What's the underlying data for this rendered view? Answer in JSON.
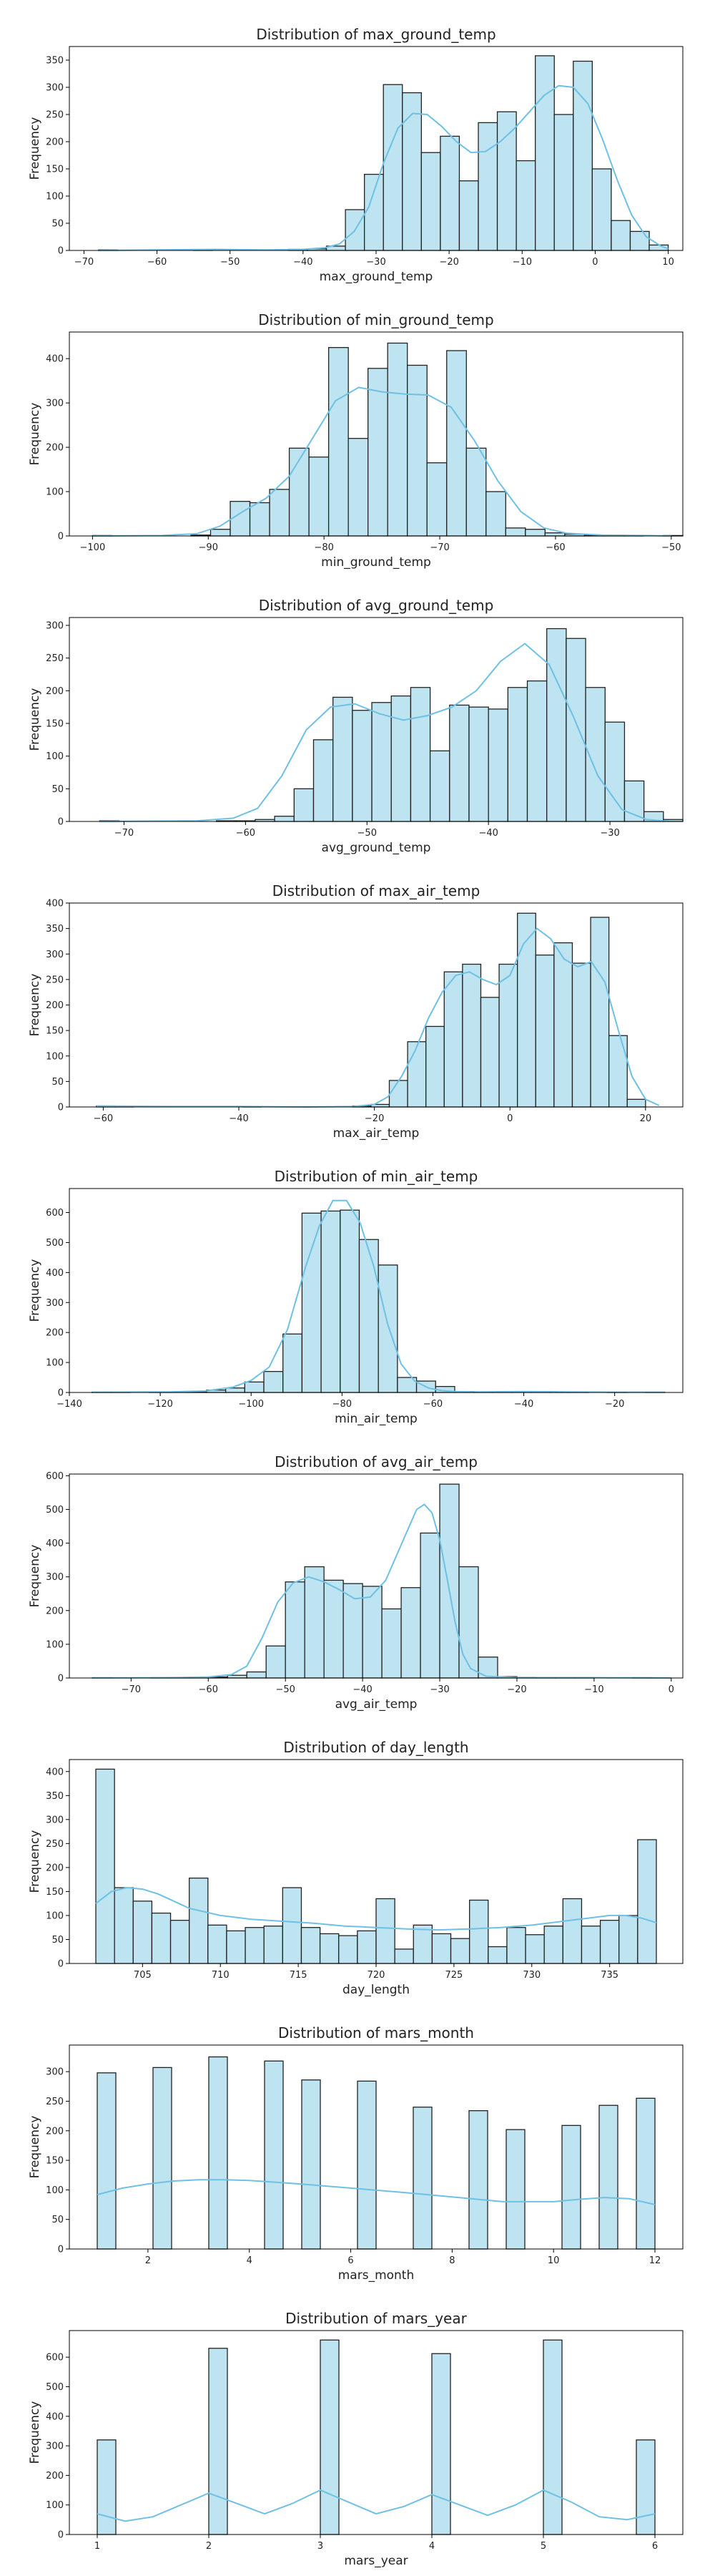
{
  "chart_data": [
    {
      "type": "bar",
      "title": "Distribution of max_ground_temp",
      "xlabel": "max_ground_temp",
      "ylabel": "Frequency",
      "xlim": [
        -72,
        12
      ],
      "ylim": [
        0,
        375
      ],
      "xticks": [
        -70,
        -60,
        -50,
        -40,
        -30,
        -20,
        -10,
        0,
        10
      ],
      "yticks": [
        0,
        50,
        100,
        150,
        200,
        250,
        300,
        350
      ],
      "bin_edges": [
        -68,
        -65.4,
        -62.8,
        -60.2,
        -57.6,
        -55,
        -52.4,
        -49.8,
        -47.2,
        -44.6,
        -42,
        -39.4,
        -36.8,
        -34.2,
        -31.6,
        -29,
        -26.4,
        -23.8,
        -21.2,
        -18.6,
        -16,
        -13.4,
        -10.8,
        -8.2,
        -5.6,
        -3,
        -0.4,
        2.2,
        4.8,
        7.4,
        10
      ],
      "values": [
        1,
        0,
        0,
        0,
        0,
        1,
        0,
        0,
        0,
        0,
        2,
        3,
        8,
        75,
        140,
        305,
        290,
        180,
        210,
        128,
        235,
        255,
        165,
        358,
        250,
        348,
        150,
        55,
        35,
        10
      ],
      "kde": {
        "x": [
          -68,
          -60,
          -52,
          -45,
          -40,
          -37,
          -35,
          -33,
          -31,
          -29,
          -27,
          -25,
          -23,
          -21,
          -19,
          -17,
          -15,
          -13,
          -11,
          -9,
          -7,
          -5,
          -3,
          -1,
          1,
          3,
          5,
          7,
          9,
          10
        ],
        "y": [
          0,
          1,
          2,
          1,
          2,
          5,
          12,
          35,
          80,
          160,
          225,
          252,
          250,
          228,
          200,
          180,
          182,
          200,
          225,
          255,
          285,
          303,
          300,
          270,
          205,
          130,
          65,
          25,
          8,
          3
        ]
      }
    },
    {
      "type": "bar",
      "title": "Distribution of min_ground_temp",
      "xlabel": "min_ground_temp",
      "ylabel": "Frequency",
      "xlim": [
        -102,
        -49
      ],
      "ylim": [
        0,
        460
      ],
      "xticks": [
        -100,
        -90,
        -80,
        -70,
        -60,
        -50
      ],
      "yticks": [
        0,
        100,
        200,
        300,
        400
      ],
      "bin_edges": [
        -100,
        -98.3,
        -96.6,
        -94.9,
        -93.2,
        -91.5,
        -89.8,
        -88.1,
        -86.4,
        -84.7,
        -83,
        -81.3,
        -79.6,
        -77.9,
        -76.2,
        -74.5,
        -72.8,
        -71.1,
        -69.4,
        -67.7,
        -66,
        -64.3,
        -62.6,
        -60.9,
        -59.2,
        -57.5,
        -55.8,
        -54.1,
        -52.4,
        -50.7,
        -49
      ],
      "values": [
        1,
        0,
        0,
        0,
        0,
        2,
        15,
        78,
        75,
        105,
        198,
        178,
        425,
        220,
        378,
        435,
        385,
        165,
        418,
        198,
        100,
        18,
        15,
        7,
        4,
        2,
        1,
        1,
        0,
        1
      ],
      "kde": {
        "x": [
          -100,
          -94,
          -91,
          -89,
          -87,
          -85,
          -83,
          -81,
          -79,
          -77,
          -75,
          -73,
          -71,
          -69,
          -67,
          -65,
          -63,
          -61,
          -59,
          -56,
          -52,
          -50
        ],
        "y": [
          0,
          1,
          5,
          22,
          55,
          85,
          135,
          220,
          305,
          335,
          325,
          320,
          318,
          290,
          215,
          125,
          55,
          18,
          6,
          2,
          1,
          0
        ]
      }
    },
    {
      "type": "bar",
      "title": "Distribution of avg_ground_temp",
      "xlabel": "avg_ground_temp",
      "ylabel": "Frequency",
      "xlim": [
        -74.5,
        -24
      ],
      "ylim": [
        0,
        312
      ],
      "xticks": [
        -70,
        -60,
        -50,
        -40,
        -30
      ],
      "yticks": [
        0,
        50,
        100,
        150,
        200,
        250,
        300
      ],
      "bin_edges": [
        -72,
        -70.4,
        -68.8,
        -67.2,
        -65.6,
        -64,
        -62.4,
        -60.8,
        -59.2,
        -57.6,
        -56,
        -54.4,
        -52.8,
        -51.2,
        -49.6,
        -48,
        -46.4,
        -44.8,
        -43.2,
        -41.6,
        -40,
        -38.4,
        -36.8,
        -35.2,
        -33.6,
        -32,
        -30.4,
        -28.8,
        -27.2,
        -25.6,
        -24
      ],
      "values": [
        1,
        0,
        0,
        0,
        0,
        0,
        1,
        1,
        3,
        8,
        50,
        125,
        190,
        170,
        182,
        192,
        205,
        108,
        178,
        175,
        172,
        205,
        215,
        295,
        280,
        205,
        152,
        62,
        15,
        3
      ],
      "kde": {
        "x": [
          -72,
          -64,
          -61,
          -59,
          -57,
          -55,
          -53,
          -51,
          -49,
          -47,
          -45,
          -43,
          -41,
          -39,
          -37,
          -35,
          -33,
          -31,
          -29,
          -27,
          -25
        ],
        "y": [
          0,
          1,
          5,
          20,
          70,
          140,
          175,
          180,
          165,
          155,
          162,
          175,
          200,
          245,
          272,
          240,
          160,
          70,
          18,
          3,
          0
        ]
      }
    },
    {
      "type": "bar",
      "title": "Distribution of max_air_temp",
      "xlabel": "max_air_temp",
      "ylabel": "Frequency",
      "xlim": [
        -65,
        25.5
      ],
      "ylim": [
        0,
        400
      ],
      "xticks": [
        -60,
        -40,
        -20,
        0,
        20
      ],
      "yticks": [
        0,
        50,
        100,
        150,
        200,
        250,
        300,
        350,
        400
      ],
      "bin_edges": [
        -61,
        -58.3,
        -55.6,
        -52.9,
        -50.2,
        -47.5,
        -44.8,
        -42.1,
        -39.4,
        -36.7,
        -34,
        -31.3,
        -28.6,
        -25.9,
        -23.2,
        -20.5,
        -17.8,
        -15.1,
        -12.4,
        -9.7,
        -7,
        -4.3,
        -1.6,
        1.1,
        3.8,
        6.5,
        9.2,
        11.9,
        14.6,
        17.3,
        20
      ],
      "values": [
        2,
        1,
        0,
        0,
        0,
        0,
        0,
        0,
        1,
        0,
        0,
        0,
        0,
        0,
        2,
        5,
        52,
        128,
        158,
        265,
        280,
        215,
        280,
        380,
        298,
        322,
        282,
        372,
        140,
        15
      ],
      "kde": {
        "x": [
          -61,
          -50,
          -40,
          -30,
          -23,
          -20,
          -18,
          -16,
          -14,
          -12,
          -10,
          -8,
          -6,
          -4,
          -2,
          0,
          2,
          4,
          6,
          8,
          10,
          12,
          14,
          16,
          18,
          20,
          22
        ],
        "y": [
          2,
          1,
          1,
          0,
          1,
          5,
          20,
          60,
          110,
          175,
          225,
          258,
          265,
          250,
          240,
          258,
          320,
          350,
          330,
          290,
          275,
          285,
          245,
          150,
          60,
          15,
          3
        ]
      }
    },
    {
      "type": "bar",
      "title": "Distribution of min_air_temp",
      "xlabel": "min_air_temp",
      "ylabel": "Frequency",
      "xlim": [
        -140,
        -5
      ],
      "ylim": [
        0,
        680
      ],
      "xticks": [
        -140,
        -120,
        -100,
        -80,
        -60,
        -40,
        -20
      ],
      "yticks": [
        0,
        100,
        200,
        300,
        400,
        500,
        600
      ],
      "bin_edges": [
        -135,
        -130.8,
        -126.6,
        -122.4,
        -118.2,
        -114,
        -109.8,
        -105.6,
        -101.4,
        -97.2,
        -93,
        -88.8,
        -84.6,
        -80.4,
        -76.2,
        -72,
        -67.8,
        -63.6,
        -59.4,
        -55.2,
        -51,
        -46.8,
        -42.6,
        -38.4,
        -34.2,
        -30,
        -25.8,
        -21.6,
        -17.4,
        -13.2,
        -9
      ],
      "values": [
        1,
        1,
        0,
        1,
        2,
        3,
        8,
        15,
        35,
        70,
        195,
        598,
        605,
        608,
        510,
        425,
        50,
        38,
        20,
        3,
        1,
        1,
        2,
        1,
        1,
        1,
        0,
        1,
        0,
        1
      ],
      "kde": {
        "x": [
          -135,
          -118,
          -110,
          -104,
          -100,
          -96,
          -92,
          -88,
          -85,
          -82,
          -79,
          -76,
          -73,
          -70,
          -67,
          -64,
          -61,
          -58,
          -55,
          -50,
          -40,
          -30,
          -20,
          -9
        ],
        "y": [
          1,
          2,
          5,
          18,
          40,
          85,
          210,
          420,
          555,
          640,
          640,
          565,
          420,
          230,
          95,
          38,
          15,
          6,
          3,
          2,
          3,
          2,
          1,
          1
        ]
      }
    },
    {
      "type": "bar",
      "title": "Distribution of avg_air_temp",
      "xlabel": "avg_air_temp",
      "ylabel": "Frequency",
      "xlim": [
        -78,
        1.5
      ],
      "ylim": [
        0,
        605
      ],
      "xticks": [
        -70,
        -60,
        -50,
        -40,
        -30,
        -20,
        -10,
        0
      ],
      "yticks": [
        0,
        100,
        200,
        300,
        400,
        500,
        600
      ],
      "bin_edges": [
        -75,
        -72.5,
        -70,
        -67.5,
        -65,
        -62.5,
        -60,
        -57.5,
        -55,
        -52.5,
        -50,
        -47.5,
        -45,
        -42.5,
        -40,
        -37.5,
        -35,
        -32.5,
        -30,
        -27.5,
        -25,
        -22.5,
        -20,
        -17.5,
        -15,
        -12.5,
        -10,
        -7.5,
        -5,
        -2.5,
        0
      ],
      "values": [
        1,
        0,
        0,
        1,
        1,
        2,
        3,
        8,
        18,
        95,
        285,
        330,
        290,
        280,
        272,
        205,
        268,
        430,
        575,
        330,
        62,
        4,
        2,
        1,
        1,
        1,
        0,
        0,
        1,
        0
      ],
      "kde": {
        "x": [
          -75,
          -65,
          -60,
          -57,
          -55,
          -53,
          -51,
          -49,
          -47,
          -45,
          -43,
          -41,
          -39,
          -37,
          -35,
          -33,
          -32,
          -31,
          -30,
          -29,
          -28,
          -27,
          -26,
          -24,
          -20,
          -10,
          0
        ],
        "y": [
          0,
          1,
          3,
          10,
          35,
          120,
          225,
          282,
          300,
          285,
          262,
          235,
          240,
          290,
          395,
          500,
          515,
          490,
          410,
          290,
          165,
          70,
          28,
          5,
          1,
          1,
          0
        ]
      }
    },
    {
      "type": "bar",
      "title": "Distribution of day_length",
      "xlabel": "day_length",
      "ylabel": "Frequency",
      "xlim": [
        700.3,
        739.7
      ],
      "ylim": [
        0,
        425
      ],
      "xticks": [
        705,
        710,
        715,
        720,
        725,
        730,
        735
      ],
      "yticks": [
        0,
        50,
        100,
        150,
        200,
        250,
        300,
        350,
        400
      ],
      "bin_edges": [
        702,
        703.2,
        704.4,
        705.6,
        706.8,
        708,
        709.2,
        710.4,
        711.6,
        712.8,
        714,
        715.2,
        716.4,
        717.6,
        718.8,
        720,
        721.2,
        722.4,
        723.6,
        724.8,
        726,
        727.2,
        728.4,
        729.6,
        730.8,
        732,
        733.2,
        734.4,
        735.6,
        736.8,
        738
      ],
      "values": [
        405,
        158,
        130,
        105,
        90,
        178,
        80,
        68,
        75,
        78,
        158,
        75,
        62,
        58,
        68,
        135,
        30,
        80,
        62,
        52,
        132,
        35,
        75,
        60,
        78,
        135,
        78,
        90,
        100,
        258
      ],
      "kde": {
        "x": [
          702,
          703,
          704,
          705,
          706,
          707,
          708,
          710,
          712,
          714,
          716,
          718,
          720,
          722,
          724,
          726,
          728,
          730,
          732,
          734,
          735,
          736,
          737,
          738
        ],
        "y": [
          125,
          150,
          158,
          155,
          145,
          130,
          115,
          100,
          92,
          88,
          84,
          78,
          75,
          72,
          70,
          72,
          75,
          80,
          88,
          96,
          100,
          100,
          95,
          85
        ]
      }
    },
    {
      "type": "bar",
      "title": "Distribution of mars_month",
      "xlabel": "mars_month",
      "ylabel": "Frequency",
      "xlim": [
        0.45,
        12.55
      ],
      "ylim": [
        0,
        345
      ],
      "xticks": [
        2,
        4,
        6,
        8,
        10,
        12
      ],
      "yticks": [
        0,
        50,
        100,
        150,
        200,
        250,
        300
      ],
      "bin_edges": [
        1,
        1.3667,
        1.7333,
        2.1,
        2.4667,
        2.8333,
        3.2,
        3.5667,
        3.9333,
        4.3,
        4.6667,
        5.0333,
        5.4,
        5.7667,
        6.1333,
        6.5,
        6.8667,
        7.2333,
        7.6,
        7.9667,
        8.3333,
        8.7,
        9.0667,
        9.4333,
        9.8,
        10.1667,
        10.5333,
        10.9,
        11.2667,
        11.6333,
        12
      ],
      "values": [
        298,
        0,
        0,
        307,
        0,
        0,
        325,
        0,
        0,
        318,
        0,
        286,
        0,
        0,
        284,
        0,
        0,
        240,
        0,
        0,
        234,
        0,
        202,
        0,
        0,
        209,
        0,
        243,
        0,
        255
      ],
      "kde": {
        "x": [
          1,
          1.5,
          2,
          2.5,
          3,
          3.5,
          4,
          5,
          6,
          7,
          8,
          9,
          10,
          10.5,
          11,
          11.5,
          12
        ],
        "y": [
          92,
          103,
          110,
          115,
          117,
          117,
          116,
          110,
          103,
          96,
          88,
          80,
          80,
          84,
          87,
          85,
          75
        ]
      }
    },
    {
      "type": "bar",
      "title": "Distribution of mars_year",
      "xlabel": "mars_year",
      "ylabel": "Frequency",
      "xlim": [
        0.75,
        6.25
      ],
      "ylim": [
        0,
        690
      ],
      "xticks": [
        1,
        2,
        3,
        4,
        5,
        6
      ],
      "yticks": [
        0,
        100,
        200,
        300,
        400,
        500,
        600
      ],
      "bin_edges": [
        1,
        1.1667,
        1.3333,
        1.5,
        1.6667,
        1.8333,
        2,
        2.1667,
        2.3333,
        2.5,
        2.6667,
        2.8333,
        3,
        3.1667,
        3.3333,
        3.5,
        3.6667,
        3.8333,
        4,
        4.1667,
        4.3333,
        4.5,
        4.6667,
        4.8333,
        5,
        5.1667,
        5.3333,
        5.5,
        5.6667,
        5.8333,
        6
      ],
      "values": [
        320,
        0,
        0,
        0,
        0,
        0,
        630,
        0,
        0,
        0,
        0,
        0,
        658,
        0,
        0,
        0,
        0,
        0,
        612,
        0,
        0,
        0,
        0,
        0,
        658,
        0,
        0,
        0,
        0,
        320
      ],
      "kde": {
        "x": [
          1,
          1.25,
          1.5,
          1.75,
          2,
          2.25,
          2.5,
          2.75,
          3,
          3.25,
          3.5,
          3.75,
          4,
          4.25,
          4.5,
          4.75,
          5,
          5.25,
          5.5,
          5.75,
          6
        ],
        "y": [
          70,
          45,
          60,
          100,
          140,
          105,
          70,
          105,
          150,
          110,
          70,
          95,
          135,
          100,
          65,
          100,
          150,
          110,
          60,
          50,
          70
        ]
      }
    }
  ]
}
